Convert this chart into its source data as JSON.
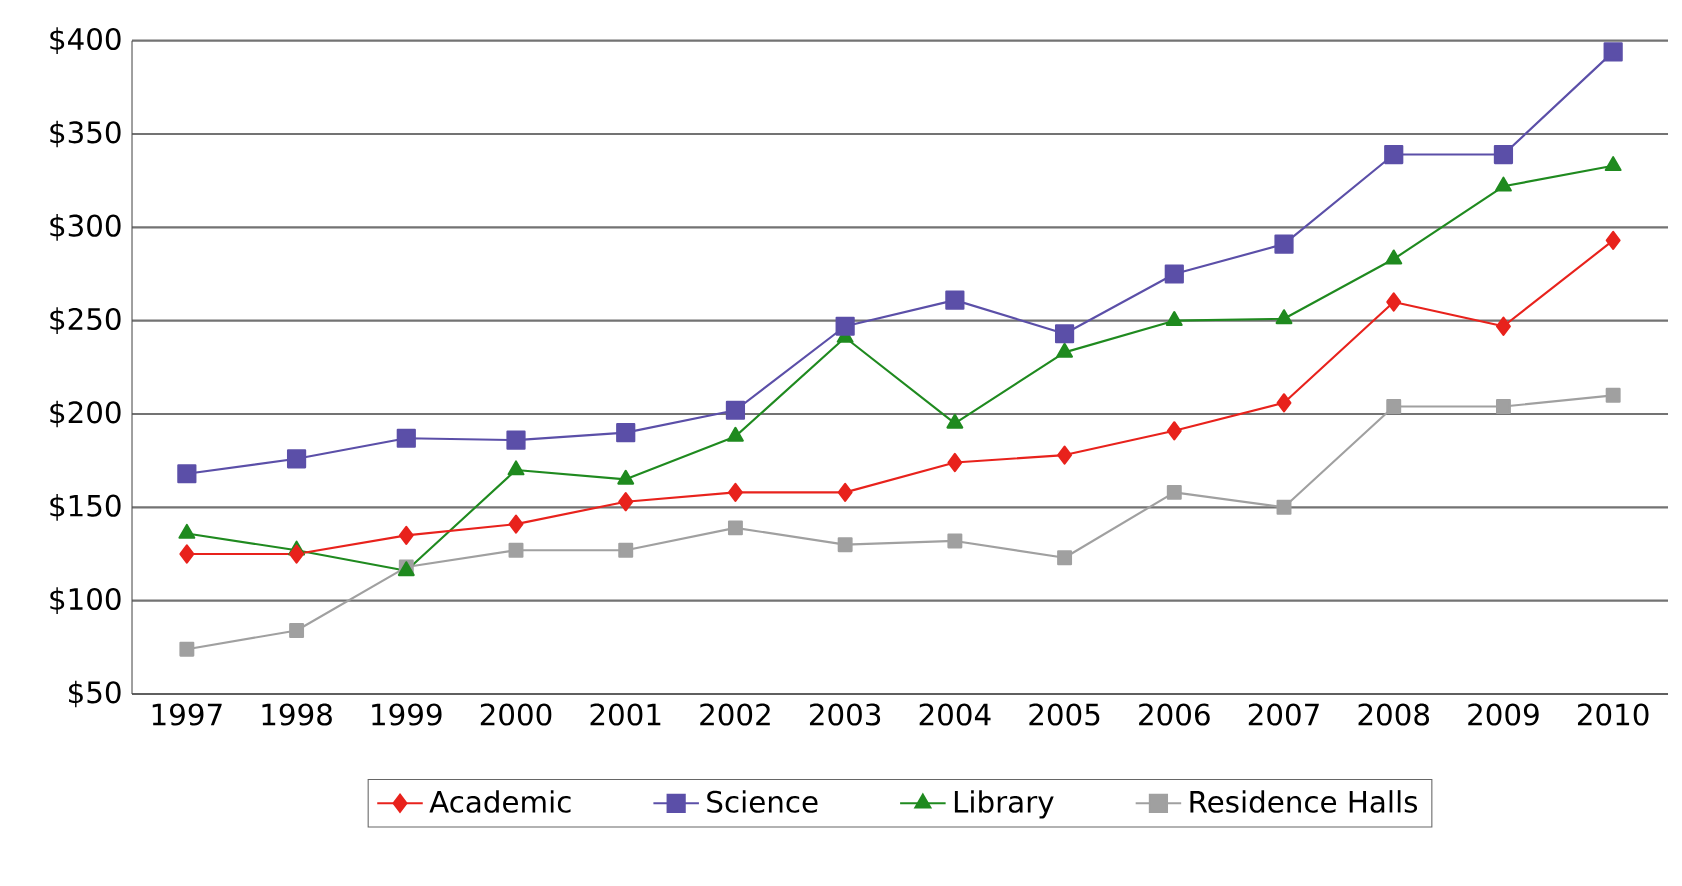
{
  "chart_data": {
    "type": "line",
    "categories": [
      "1997",
      "1998",
      "1999",
      "2000",
      "2001",
      "2002",
      "2003",
      "2004",
      "2005",
      "2006",
      "2007",
      "2008",
      "2009",
      "2010"
    ],
    "series": [
      {
        "name": "Academic",
        "color": "#e8221c",
        "marker": "diamond",
        "values": [
          125,
          125,
          135,
          141,
          153,
          158,
          158,
          174,
          178,
          191,
          206,
          260,
          247,
          293
        ]
      },
      {
        "name": "Science",
        "color": "#5b4fa8",
        "marker": "square",
        "values": [
          168,
          176,
          187,
          186,
          190,
          202,
          247,
          261,
          243,
          275,
          291,
          339,
          339,
          394
        ]
      },
      {
        "name": "Library",
        "color": "#1f8a1f",
        "marker": "triangle",
        "values": [
          136,
          127,
          116,
          170,
          165,
          188,
          241,
          195,
          233,
          250,
          251,
          283,
          322,
          333
        ]
      },
      {
        "name": "Residence Halls",
        "color": "#a0a0a0",
        "marker": "square",
        "values": [
          74,
          84,
          118,
          127,
          127,
          139,
          130,
          132,
          123,
          158,
          150,
          204,
          204,
          210
        ]
      }
    ],
    "ylim": [
      50,
      400
    ],
    "yticks": [
      {
        "value": 50,
        "label": "$50"
      },
      {
        "value": 100,
        "label": "$100"
      },
      {
        "value": 150,
        "label": "$150"
      },
      {
        "value": 200,
        "label": "$200"
      },
      {
        "value": 250,
        "label": "$250"
      },
      {
        "value": 300,
        "label": "$300"
      },
      {
        "value": 350,
        "label": "$350"
      },
      {
        "value": 400,
        "label": "$400"
      }
    ],
    "grid": "y",
    "legend": "bottom"
  }
}
